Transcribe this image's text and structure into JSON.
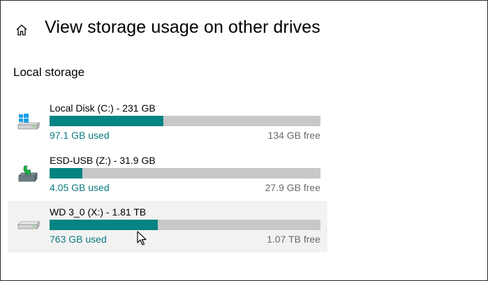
{
  "header": {
    "title": "View storage usage on other drives",
    "home_icon": "home-icon"
  },
  "section": {
    "title": "Local storage"
  },
  "drives": [
    {
      "name": "Local Disk (C:) - 231 GB",
      "used": "97.1 GB used",
      "free": "134 GB free",
      "used_fraction": 0.42,
      "icon": "windows-drive-icon"
    },
    {
      "name": "ESD-USB (Z:) - 31.9 GB",
      "used": "4.05 GB used",
      "free": "27.9 GB free",
      "used_fraction": 0.12,
      "icon": "usb-drive-icon"
    },
    {
      "name": "WD 3_0 (X:) - 1.81 TB",
      "used": "763 GB used",
      "free": "1.07 TB free",
      "used_fraction": 0.4,
      "icon": "external-drive-icon"
    }
  ],
  "colors": {
    "bar_fill": "#058482",
    "bar_track": "#c8c8c8",
    "used_text": "#0a7a80",
    "free_text": "#6a6a6a",
    "hover_bg": "#f2f2f2"
  }
}
